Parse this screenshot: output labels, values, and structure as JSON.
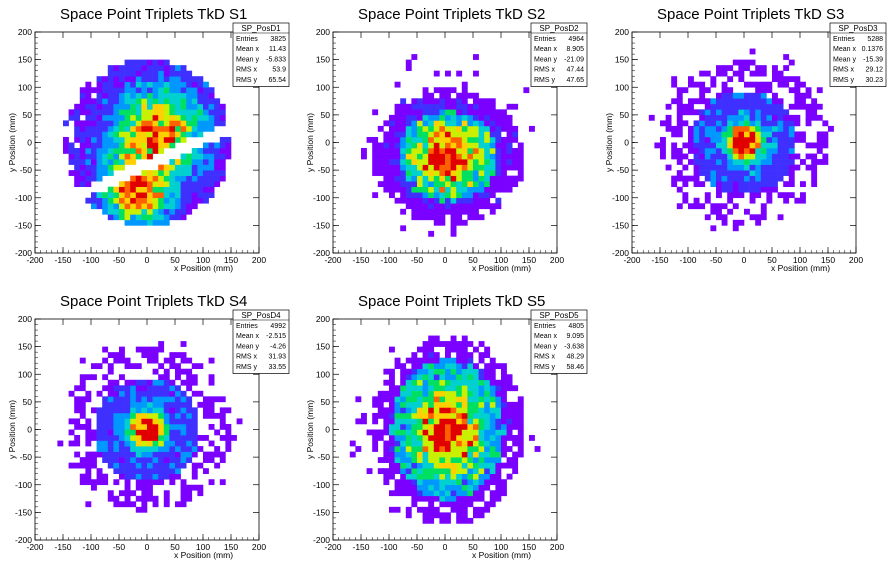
{
  "chart_data": [
    {
      "type": "heatmap",
      "title": "Space Point Triplets TkD S1",
      "xlabel": "x Position (mm)",
      "ylabel": "y Position (mm)",
      "xlim": [
        -200,
        200
      ],
      "ylim": [
        -200,
        200
      ],
      "xticks": [
        -200,
        -150,
        -100,
        -50,
        0,
        50,
        100,
        150,
        200
      ],
      "yticks": [
        -200,
        -150,
        -100,
        -50,
        0,
        50,
        100,
        150,
        200
      ],
      "stats": {
        "name": "SP_PosD1",
        "rows": [
          {
            "label": "Entries",
            "value": "3825"
          },
          {
            "label": "Mean x",
            "value": "11.43"
          },
          {
            "label": "Mean y",
            "value": "-5.833"
          },
          {
            "label": "RMS x",
            "value": "53.9"
          },
          {
            "label": "RMS y",
            "value": "65.54"
          }
        ]
      },
      "pattern": "split"
    },
    {
      "type": "heatmap",
      "title": "Space Point Triplets TkD S2",
      "xlabel": "x Position (mm)",
      "ylabel": "y Position (mm)",
      "xlim": [
        -200,
        200
      ],
      "ylim": [
        -200,
        200
      ],
      "xticks": [
        -200,
        -150,
        -100,
        -50,
        0,
        50,
        100,
        150,
        200
      ],
      "yticks": [
        -200,
        -150,
        -100,
        -50,
        0,
        50,
        100,
        150,
        200
      ],
      "stats": {
        "name": "SP_PosD2",
        "rows": [
          {
            "label": "Entries",
            "value": "4964"
          },
          {
            "label": "Mean x",
            "value": "8.905"
          },
          {
            "label": "Mean y",
            "value": "-21.09"
          },
          {
            "label": "RMS x",
            "value": "47.44"
          },
          {
            "label": "RMS y",
            "value": "47.65"
          }
        ]
      },
      "pattern": "blob"
    },
    {
      "type": "heatmap",
      "title": "Space Point Triplets TkD S3",
      "xlabel": "x Position (mm)",
      "ylabel": "y Position (mm)",
      "xlim": [
        -200,
        200
      ],
      "ylim": [
        -200,
        200
      ],
      "xticks": [
        -200,
        -150,
        -100,
        -50,
        0,
        50,
        100,
        150,
        200
      ],
      "yticks": [
        -200,
        -150,
        -100,
        -50,
        0,
        50,
        100,
        150,
        200
      ],
      "stats": {
        "name": "SP_PosD3",
        "rows": [
          {
            "label": "Entries",
            "value": "5288"
          },
          {
            "label": "Mean x",
            "value": "0.1376"
          },
          {
            "label": "Mean y",
            "value": "-15.39"
          },
          {
            "label": "RMS x",
            "value": "29.12"
          },
          {
            "label": "RMS y",
            "value": "30.23"
          }
        ]
      },
      "pattern": "peak"
    },
    {
      "type": "heatmap",
      "title": "Space Point Triplets TkD S4",
      "xlabel": "x Position (mm)",
      "ylabel": "y Position (mm)",
      "xlim": [
        -200,
        200
      ],
      "ylim": [
        -200,
        200
      ],
      "xticks": [
        -200,
        -150,
        -100,
        -50,
        0,
        50,
        100,
        150,
        200
      ],
      "yticks": [
        -200,
        -150,
        -100,
        -50,
        0,
        50,
        100,
        150,
        200
      ],
      "stats": {
        "name": "SP_PosD4",
        "rows": [
          {
            "label": "Entries",
            "value": "4992"
          },
          {
            "label": "Mean x",
            "value": "-2.515"
          },
          {
            "label": "Mean y",
            "value": "-4.26"
          },
          {
            "label": "RMS x",
            "value": "31.93"
          },
          {
            "label": "RMS y",
            "value": "33.55"
          }
        ]
      },
      "pattern": "peak"
    },
    {
      "type": "heatmap",
      "title": "Space Point Triplets TkD S5",
      "xlabel": "x Position (mm)",
      "ylabel": "y Position (mm)",
      "xlim": [
        -200,
        200
      ],
      "ylim": [
        -200,
        200
      ],
      "xticks": [
        -200,
        -150,
        -100,
        -50,
        0,
        50,
        100,
        150,
        200
      ],
      "yticks": [
        -200,
        -150,
        -100,
        -50,
        0,
        50,
        100,
        150,
        200
      ],
      "stats": {
        "name": "SP_PosD5",
        "rows": [
          {
            "label": "Entries",
            "value": "4805"
          },
          {
            "label": "Mean x",
            "value": "9.095"
          },
          {
            "label": "Mean y",
            "value": "-3.638"
          },
          {
            "label": "RMS x",
            "value": "48.29"
          },
          {
            "label": "RMS y",
            "value": "58.46"
          }
        ]
      },
      "pattern": "wide"
    }
  ],
  "colors": {
    "palette": [
      "#7a00ff",
      "#3f30ff",
      "#0098ff",
      "#00d0d0",
      "#00e060",
      "#c8f000",
      "#ffd000",
      "#ff6000",
      "#e00000"
    ]
  }
}
